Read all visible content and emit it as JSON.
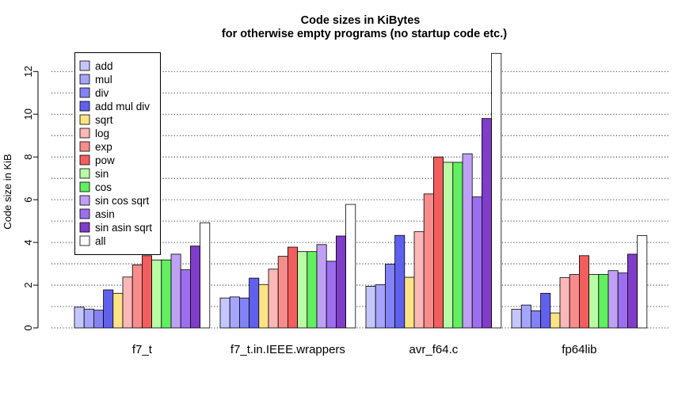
{
  "chart_data": {
    "type": "bar",
    "title": "Code sizes in KiBytes",
    "subtitle": "for otherwise empty programs (no startup code etc.)",
    "ylabel": "Code size in KiB",
    "xlabel": "",
    "ylim": [
      0,
      12.9
    ],
    "yticks": [
      0,
      2,
      4,
      6,
      8,
      10,
      12
    ],
    "grid": "horizontal dotted",
    "legend_position": "top-left",
    "categories": [
      "f7_t",
      "f7_t.in.IEEE.wrappers",
      "avr_f64.c",
      "fp64lib"
    ],
    "series": [
      {
        "name": "add",
        "color": "#c6c6ff",
        "values": [
          0.97,
          1.4,
          1.95,
          0.87
        ]
      },
      {
        "name": "mul",
        "color": "#a5a5fb",
        "values": [
          0.88,
          1.45,
          2.02,
          1.07
        ]
      },
      {
        "name": "div",
        "color": "#8383f5",
        "values": [
          0.83,
          1.4,
          2.98,
          0.8
        ]
      },
      {
        "name": "add mul div",
        "color": "#6060ef",
        "values": [
          1.78,
          2.33,
          4.33,
          1.62
        ]
      },
      {
        "name": "sqrt",
        "color": "#fce385",
        "values": [
          1.62,
          2.03,
          2.37,
          0.7
        ]
      },
      {
        "name": "log",
        "color": "#fcb8b8",
        "values": [
          2.38,
          2.75,
          4.5,
          2.35
        ]
      },
      {
        "name": "exp",
        "color": "#f88c8c",
        "values": [
          2.95,
          3.35,
          6.27,
          2.5
        ]
      },
      {
        "name": "pow",
        "color": "#f25e5e",
        "values": [
          3.38,
          3.78,
          8.0,
          3.38
        ]
      },
      {
        "name": "sin",
        "color": "#b8fca5",
        "values": [
          3.18,
          3.57,
          7.75,
          2.5
        ]
      },
      {
        "name": "cos",
        "color": "#60f060",
        "values": [
          3.18,
          3.57,
          7.75,
          2.5
        ]
      },
      {
        "name": "sin cos sqrt",
        "color": "#c0a0f5",
        "values": [
          3.45,
          3.9,
          8.15,
          2.68
        ]
      },
      {
        "name": "asin",
        "color": "#9c6ff0",
        "values": [
          2.72,
          3.12,
          6.13,
          2.57
        ]
      },
      {
        "name": "sin asin sqrt",
        "color": "#7f3dc8",
        "values": [
          3.83,
          4.3,
          9.8,
          3.45
        ]
      },
      {
        "name": "all",
        "color": "#ffffff",
        "values": [
          4.92,
          5.78,
          12.85,
          4.32
        ]
      }
    ]
  }
}
